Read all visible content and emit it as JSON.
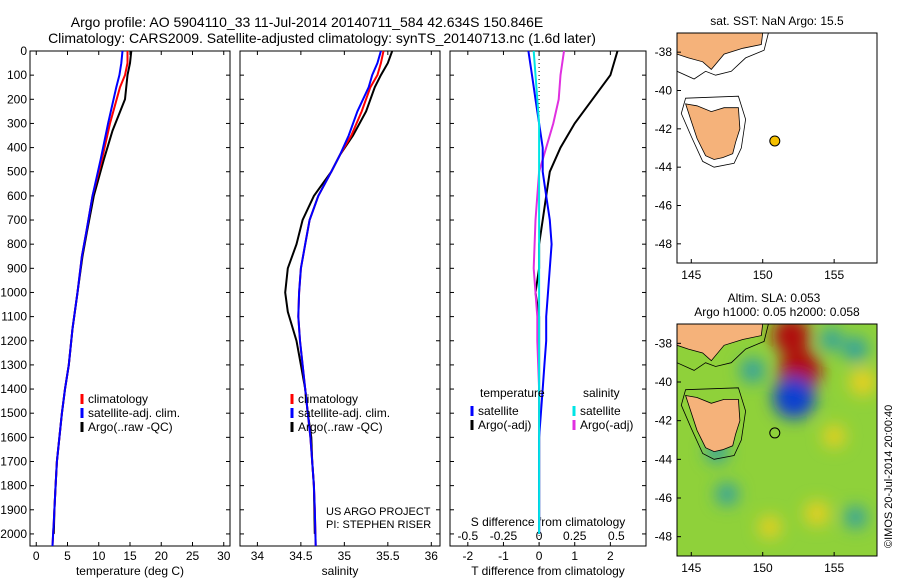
{
  "header": {
    "title_line1": "Argo profile: AO 5904110_33 11-Jul-2014 20140711_584 42.634S 150.846E",
    "title_line2": "Climatology: CARS2009. Satellite-adjusted climatology: synTS_20140713.nc (1.6d later)"
  },
  "colors": {
    "climatology": "#ff0000",
    "satellite": "#0000ff",
    "argo": "#000000",
    "sat_salinity": "#00e5e5",
    "argo_salinity": "#e030e0",
    "land": "#f5b27a",
    "argo_marker": "#f5c000"
  },
  "footer_text": {
    "us_argo": "US ARGO PROJECT",
    "pi": "PI: STEPHEN RISER",
    "imos": "©IMOS 20-Jul-2014 20:00:40"
  },
  "chart_data": [
    {
      "type": "line",
      "id": "temperature",
      "xlabel": "temperature (deg C)",
      "ylim": [
        2050,
        0
      ],
      "xlim": [
        -1,
        31
      ],
      "xticks": [
        0,
        5,
        10,
        15,
        20,
        25,
        30
      ],
      "yticks": [
        0,
        100,
        200,
        300,
        400,
        500,
        600,
        700,
        800,
        900,
        1000,
        1100,
        1200,
        1300,
        1400,
        1500,
        1600,
        1700,
        1800,
        1900,
        2000
      ],
      "legend": {
        "position": "lower-center",
        "entries": [
          "climatology",
          "satellite-adj. clim.",
          "Argo(..raw -QC)"
        ]
      },
      "series": [
        {
          "name": "climatology",
          "color": "#ff0000",
          "x": [
            14.6,
            14.6,
            14.2,
            13.4,
            11.8,
            10.5,
            9.0,
            8.0,
            7.3,
            6.6,
            5.8,
            5.2,
            4.6,
            4.1,
            3.7,
            3.3,
            3.1,
            2.9,
            2.8,
            2.7,
            2.6
          ],
          "y": [
            0,
            50,
            100,
            150,
            300,
            450,
            600,
            750,
            850,
            1000,
            1150,
            1300,
            1400,
            1500,
            1600,
            1700,
            1800,
            1900,
            1950,
            2000,
            2050
          ]
        },
        {
          "name": "satellite-adj. clim.",
          "color": "#0000ff",
          "x": [
            13.8,
            13.6,
            13.3,
            12.8,
            11.5,
            10.3,
            9.0,
            8.0,
            7.3,
            6.6,
            5.8,
            5.2,
            4.6,
            4.1,
            3.7,
            3.3,
            3.1,
            2.9,
            2.8,
            2.7,
            2.6
          ],
          "y": [
            0,
            50,
            100,
            150,
            300,
            450,
            600,
            750,
            850,
            1000,
            1150,
            1300,
            1400,
            1500,
            1600,
            1700,
            1800,
            1900,
            1950,
            2000,
            2050
          ]
        },
        {
          "name": "Argo(..raw -QC)",
          "color": "#000000",
          "x": [
            15.2,
            15.0,
            14.6,
            14.2,
            12.2,
            10.8,
            9.2,
            8.1,
            7.4,
            6.6,
            5.8,
            5.2,
            4.6,
            4.1,
            3.7,
            3.3,
            3.1,
            2.9,
            2.8
          ],
          "y": [
            0,
            50,
            100,
            200,
            330,
            450,
            600,
            750,
            850,
            1000,
            1150,
            1300,
            1400,
            1500,
            1600,
            1700,
            1800,
            1900,
            2000
          ]
        }
      ]
    },
    {
      "type": "line",
      "id": "salinity",
      "xlabel": "salinity",
      "ylim": [
        2050,
        0
      ],
      "xlim": [
        33.8,
        36.1
      ],
      "xticks": [
        34,
        34.5,
        35,
        35.5,
        36
      ],
      "xticklabels": [
        "34",
        "34.5",
        "35",
        "35.5",
        "36"
      ],
      "legend": {
        "position": "lower-center",
        "entries": [
          "climatology",
          "satellite-adj. clim.",
          "Argo(..raw -QC)"
        ]
      },
      "series": [
        {
          "name": "climatology",
          "color": "#ff0000",
          "x": [
            35.45,
            35.42,
            35.38,
            35.3,
            35.2,
            35.08,
            34.95,
            34.85,
            34.7,
            34.6,
            34.55,
            34.5,
            34.48,
            34.47,
            34.49,
            34.52,
            34.55,
            34.58,
            34.61,
            34.63,
            34.65,
            34.66,
            34.67
          ],
          "y": [
            0,
            50,
            100,
            150,
            250,
            350,
            430,
            500,
            600,
            700,
            800,
            900,
            1000,
            1100,
            1200,
            1300,
            1400,
            1500,
            1600,
            1700,
            1800,
            1900,
            2050
          ]
        },
        {
          "name": "satellite-adj. clim.",
          "color": "#0000ff",
          "x": [
            35.42,
            35.38,
            35.32,
            35.28,
            35.15,
            35.05,
            34.95,
            34.85,
            34.7,
            34.6,
            34.55,
            34.5,
            34.48,
            34.47,
            34.49,
            34.52,
            34.55,
            34.58,
            34.61,
            34.63,
            34.65,
            34.66,
            34.67
          ],
          "y": [
            0,
            50,
            100,
            150,
            250,
            350,
            430,
            500,
            600,
            700,
            800,
            900,
            1000,
            1100,
            1200,
            1300,
            1400,
            1500,
            1600,
            1700,
            1800,
            1900,
            2050
          ]
        },
        {
          "name": "Argo(..raw -QC)",
          "color": "#000000",
          "x": [
            35.55,
            35.5,
            35.42,
            35.35,
            35.25,
            35.1,
            34.95,
            34.85,
            34.65,
            34.52,
            34.45,
            34.35,
            34.32,
            34.35,
            34.45,
            34.5,
            34.55,
            34.58,
            34.62,
            34.63,
            34.65,
            34.66
          ],
          "y": [
            0,
            50,
            100,
            150,
            250,
            350,
            430,
            500,
            600,
            700,
            800,
            900,
            1000,
            1080,
            1200,
            1300,
            1400,
            1500,
            1600,
            1700,
            1800,
            2000
          ]
        }
      ]
    },
    {
      "type": "line",
      "id": "difference",
      "xlabel": "T difference from climatology",
      "xlabel_top": "S difference from climatology",
      "ylim": [
        2050,
        0
      ],
      "xlim": [
        -2.5,
        3
      ],
      "xticks": [
        -2,
        -1,
        0,
        1,
        2
      ],
      "xticklabels_top": [
        "-0.5",
        "-0.25",
        "0",
        "0.25",
        "0.5"
      ],
      "legend": {
        "position": "lower-center",
        "columns": [
          "temperature",
          "salinity"
        ],
        "entries": [
          "satellite",
          "Argo(-adj)",
          "satellite",
          "Argo(-adj)"
        ]
      },
      "series": [
        {
          "name": "temperature satellite",
          "color": "#0000ff",
          "x": [
            -0.3,
            -0.2,
            -0.1,
            0.0,
            0.1,
            0.1,
            0.2,
            0.3,
            0.35,
            0.3,
            0.25,
            0.2,
            0.2,
            0.15,
            0.1,
            0.05,
            0.0,
            0.0,
            0.0,
            0.0
          ],
          "y": [
            0,
            100,
            200,
            300,
            400,
            500,
            600,
            700,
            800,
            900,
            1000,
            1100,
            1200,
            1300,
            1400,
            1500,
            1600,
            1700,
            1800,
            2000
          ]
        },
        {
          "name": "temperature Argo(-adj)",
          "color": "#000000",
          "x": [
            2.2,
            2.0,
            1.5,
            1.0,
            0.6,
            0.3,
            0.2,
            0.1,
            0.0,
            0.0,
            -0.1,
            0.0,
            0.0,
            0.0,
            0.0,
            0.0,
            0.0
          ],
          "y": [
            0,
            100,
            200,
            300,
            400,
            500,
            600,
            700,
            800,
            900,
            1000,
            1100,
            1200,
            1300,
            1500,
            1700,
            2000
          ]
        },
        {
          "name": "salinity satellite",
          "color": "#00e5e5",
          "x": [
            -0.15,
            -0.1,
            -0.05,
            0.0,
            0.0,
            0.0,
            0.0,
            0.0,
            0.0,
            0.0,
            0.0,
            0.0,
            0.0,
            0.0,
            0.0
          ],
          "y": [
            0,
            100,
            200,
            300,
            400,
            500,
            700,
            900,
            1100,
            1300,
            1500,
            1600,
            1700,
            1800,
            2000
          ]
        },
        {
          "name": "salinity Argo(-adj)",
          "color": "#e030e0",
          "x": [
            0.7,
            0.6,
            0.55,
            0.4,
            0.2,
            0.0,
            -0.1,
            -0.15,
            -0.05,
            -0.05,
            0.0,
            0.0,
            0.0
          ],
          "y": [
            0,
            100,
            200,
            300,
            400,
            500,
            700,
            900,
            1100,
            1200,
            1400,
            1600,
            2000
          ]
        }
      ]
    },
    {
      "type": "map",
      "id": "sst-map",
      "title": "sat. SST: NaN Argo: 15.5",
      "xlim": [
        144,
        158
      ],
      "ylim": [
        -49,
        -37
      ],
      "xticks": [
        145,
        150,
        155
      ],
      "yticks": [
        -38,
        -40,
        -42,
        -44,
        -46,
        -48
      ],
      "argo_position": {
        "lon": 150.846,
        "lat": -42.634
      }
    },
    {
      "type": "heatmap",
      "id": "sla-map",
      "title_line1": "Altim. SLA: 0.053",
      "title_line2": "Argo h1000: 0.05 h2000: 0.058",
      "xlim": [
        144,
        158
      ],
      "ylim": [
        -49,
        -37
      ],
      "xticks": [
        145,
        150,
        155
      ],
      "yticks": [
        -38,
        -40,
        -42,
        -44,
        -46,
        -48
      ],
      "argo_position": {
        "lon": 150.846,
        "lat": -42.634
      },
      "anomalies": [
        {
          "lon": 152.0,
          "lat": -37.6,
          "value": 0.5
        },
        {
          "lon": 152.6,
          "lat": -39.4,
          "value": 0.6
        },
        {
          "lon": 152.2,
          "lat": -40.8,
          "value": -0.6
        },
        {
          "lon": 149.3,
          "lat": -39.4,
          "value": -0.2
        },
        {
          "lon": 154.8,
          "lat": -37.8,
          "value": -0.15
        },
        {
          "lon": 156.5,
          "lat": -38.3,
          "value": -0.2
        },
        {
          "lon": 157.0,
          "lat": -40.0,
          "value": 0.25
        },
        {
          "lon": 155.0,
          "lat": -42.8,
          "value": 0.15
        },
        {
          "lon": 146.8,
          "lat": -43.6,
          "value": -0.15
        },
        {
          "lon": 147.5,
          "lat": -45.8,
          "value": -0.15
        },
        {
          "lon": 153.8,
          "lat": -46.8,
          "value": 0.2
        },
        {
          "lon": 156.5,
          "lat": -47.0,
          "value": -0.15
        },
        {
          "lon": 150.5,
          "lat": -47.5,
          "value": 0.15
        }
      ]
    }
  ]
}
